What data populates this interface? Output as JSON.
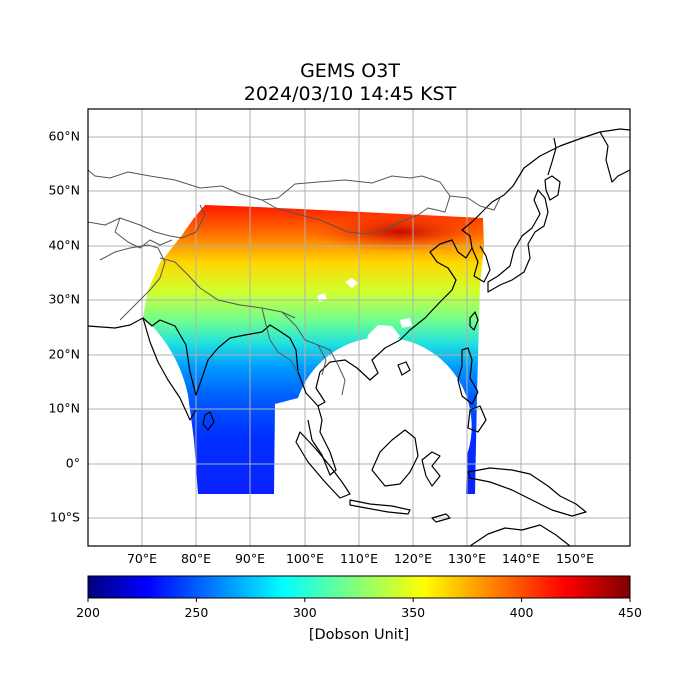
{
  "map": {
    "title": "GEMS O3T",
    "subtitle": "2024/03/10 14:45 KST",
    "lat_labels": [
      "60°N",
      "50°N",
      "40°N",
      "30°N",
      "20°N",
      "10°N",
      "0°",
      "10°S"
    ],
    "lon_labels": [
      "70°E",
      "80°E",
      "90°E",
      "100°E",
      "110°E",
      "120°E",
      "130°E",
      "140°E",
      "150°E"
    ],
    "lon_range": [
      60,
      160
    ],
    "lat_range": [
      -15,
      65
    ],
    "gridlines": true
  },
  "colorbar": {
    "colormap": "jet",
    "ticks": [
      "200",
      "250",
      "300",
      "350",
      "400",
      "450"
    ],
    "label": "[Dobson Unit]",
    "range": [
      200,
      450
    ]
  }
}
